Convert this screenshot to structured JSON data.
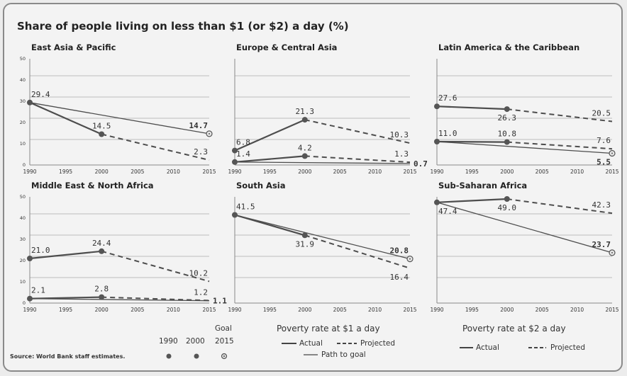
{
  "title": "Share of people living on less than $1 (or $2) a day (%)",
  "chart_data": [
    {
      "type": "line",
      "title": "East Asia & Pacific",
      "x_ticks": [
        "1990",
        "1995",
        "2000",
        "2005",
        "2010",
        "2015"
      ],
      "y_ticks": [
        "0",
        "10",
        "20",
        "30",
        "40",
        "50"
      ],
      "ylim": [
        0,
        50
      ],
      "series": [
        {
          "style": "goal",
          "points": [
            [
              1990,
              29.4
            ],
            [
              2015,
              14.7
            ]
          ]
        },
        {
          "style": "actual",
          "points": [
            [
              1990,
              29.4
            ],
            [
              2000,
              14.5
            ]
          ]
        },
        {
          "style": "projected",
          "points": [
            [
              2000,
              14.5
            ],
            [
              2015,
              2.3
            ]
          ]
        }
      ],
      "labels": [
        {
          "text": "29.4",
          "x": 1990,
          "y": 29.4,
          "pos": "above-right",
          "bold": false
        },
        {
          "text": "14.5",
          "x": 2000,
          "y": 14.5,
          "pos": "above",
          "bold": false
        },
        {
          "text": "14.7",
          "x": 2015,
          "y": 14.7,
          "pos": "above-left",
          "bold": true
        },
        {
          "text": "2.3",
          "x": 2015,
          "y": 2.3,
          "pos": "above-left",
          "bold": false
        }
      ],
      "markers": [
        {
          "year": 1990,
          "value": 29.4,
          "kind": "1990"
        },
        {
          "year": 2000,
          "value": 14.5,
          "kind": "2000"
        },
        {
          "year": 2015,
          "value": 14.7,
          "kind": "goal"
        }
      ]
    },
    {
      "type": "line",
      "title": "Europe & Central Asia",
      "x_ticks": [
        "1990",
        "1995",
        "2000",
        "2005",
        "2010",
        "2015"
      ],
      "y_ticks": [],
      "ylim": [
        0,
        50
      ],
      "series": [
        {
          "style": "actual",
          "points": [
            [
              1990,
              6.8
            ],
            [
              2000,
              21.3
            ]
          ]
        },
        {
          "style": "projected",
          "points": [
            [
              2000,
              21.3
            ],
            [
              2015,
              10.3
            ]
          ]
        },
        {
          "style": "actual",
          "points": [
            [
              1990,
              1.4
            ],
            [
              2000,
              4.2
            ]
          ]
        },
        {
          "style": "projected",
          "points": [
            [
              2000,
              4.2
            ],
            [
              2015,
              1.3
            ]
          ]
        },
        {
          "style": "goal",
          "points": [
            [
              1990,
              1.4
            ],
            [
              2015,
              0.7
            ]
          ]
        }
      ],
      "labels": [
        {
          "text": "6.8",
          "x": 1990,
          "y": 6.8,
          "pos": "above-right",
          "bold": false
        },
        {
          "text": "21.3",
          "x": 2000,
          "y": 21.3,
          "pos": "above",
          "bold": false
        },
        {
          "text": "10.3",
          "x": 2015,
          "y": 10.3,
          "pos": "above-left",
          "bold": false
        },
        {
          "text": "1.4",
          "x": 1990,
          "y": 1.4,
          "pos": "above-right",
          "bold": false
        },
        {
          "text": "4.2",
          "x": 2000,
          "y": 4.2,
          "pos": "above",
          "bold": false
        },
        {
          "text": "1.3",
          "x": 2015,
          "y": 1.3,
          "pos": "above-left",
          "bold": false
        },
        {
          "text": "0.7",
          "x": 2015,
          "y": 0.7,
          "pos": "right",
          "bold": true
        }
      ],
      "markers": [
        {
          "year": 1990,
          "value": 6.8,
          "kind": "1990"
        },
        {
          "year": 2000,
          "value": 21.3,
          "kind": "2000"
        },
        {
          "year": 1990,
          "value": 1.4,
          "kind": "1990"
        },
        {
          "year": 2000,
          "value": 4.2,
          "kind": "2000"
        }
      ]
    },
    {
      "type": "line",
      "title": "Latin America & the Caribbean",
      "x_ticks": [
        "1990",
        "1995",
        "2000",
        "2005",
        "2010",
        "2015"
      ],
      "y_ticks": [],
      "ylim": [
        0,
        50
      ],
      "series": [
        {
          "style": "actual",
          "points": [
            [
              1990,
              27.6
            ],
            [
              2000,
              26.3
            ]
          ]
        },
        {
          "style": "projected",
          "points": [
            [
              2000,
              26.3
            ],
            [
              2015,
              20.5
            ]
          ]
        },
        {
          "style": "actual",
          "points": [
            [
              1990,
              11.0
            ],
            [
              2000,
              10.8
            ]
          ]
        },
        {
          "style": "projected",
          "points": [
            [
              2000,
              10.8
            ],
            [
              2015,
              7.6
            ]
          ]
        },
        {
          "style": "goal",
          "points": [
            [
              1990,
              11.0
            ],
            [
              2015,
              5.5
            ]
          ]
        }
      ],
      "labels": [
        {
          "text": "27.6",
          "x": 1990,
          "y": 27.6,
          "pos": "above-right",
          "bold": false
        },
        {
          "text": "26.3",
          "x": 2000,
          "y": 26.3,
          "pos": "below",
          "bold": false
        },
        {
          "text": "20.5",
          "x": 2015,
          "y": 20.5,
          "pos": "above-left",
          "bold": false
        },
        {
          "text": "11.0",
          "x": 1990,
          "y": 11.0,
          "pos": "above-right",
          "bold": false
        },
        {
          "text": "10.8",
          "x": 2000,
          "y": 10.8,
          "pos": "above",
          "bold": false
        },
        {
          "text": "7.6",
          "x": 2015,
          "y": 7.6,
          "pos": "above-left",
          "bold": false
        },
        {
          "text": "5.5",
          "x": 2015,
          "y": 5.5,
          "pos": "below-left",
          "bold": true
        }
      ],
      "markers": [
        {
          "year": 1990,
          "value": 27.6,
          "kind": "1990"
        },
        {
          "year": 2000,
          "value": 26.3,
          "kind": "2000"
        },
        {
          "year": 1990,
          "value": 11.0,
          "kind": "1990"
        },
        {
          "year": 2000,
          "value": 10.8,
          "kind": "2000"
        },
        {
          "year": 2015,
          "value": 5.5,
          "kind": "goal"
        }
      ]
    },
    {
      "type": "line",
      "title": "Middle East & North Africa",
      "x_ticks": [
        "1990",
        "1995",
        "2000",
        "2005",
        "2010",
        "2015"
      ],
      "y_ticks": [
        "0",
        "10",
        "20",
        "30",
        "40",
        "50"
      ],
      "ylim": [
        0,
        50
      ],
      "series": [
        {
          "style": "actual",
          "points": [
            [
              1990,
              21.0
            ],
            [
              2000,
              24.4
            ]
          ]
        },
        {
          "style": "projected",
          "points": [
            [
              2000,
              24.4
            ],
            [
              2015,
              10.2
            ]
          ]
        },
        {
          "style": "actual",
          "points": [
            [
              1990,
              2.1
            ],
            [
              2000,
              2.8
            ]
          ]
        },
        {
          "style": "projected",
          "points": [
            [
              2000,
              2.8
            ],
            [
              2015,
              1.2
            ]
          ]
        },
        {
          "style": "goal",
          "points": [
            [
              1990,
              2.1
            ],
            [
              2015,
              1.1
            ]
          ]
        }
      ],
      "labels": [
        {
          "text": "21.0",
          "x": 1990,
          "y": 21.0,
          "pos": "above-right",
          "bold": false
        },
        {
          "text": "24.4",
          "x": 2000,
          "y": 24.4,
          "pos": "above",
          "bold": false
        },
        {
          "text": "10.2",
          "x": 2015,
          "y": 10.2,
          "pos": "above-left",
          "bold": false
        },
        {
          "text": "2.1",
          "x": 1990,
          "y": 2.1,
          "pos": "above-right",
          "bold": false
        },
        {
          "text": "2.8",
          "x": 2000,
          "y": 2.8,
          "pos": "above",
          "bold": false
        },
        {
          "text": "1.2",
          "x": 2015,
          "y": 1.2,
          "pos": "above-left",
          "bold": false
        },
        {
          "text": "1.1",
          "x": 2015,
          "y": 1.1,
          "pos": "right",
          "bold": true
        }
      ],
      "markers": [
        {
          "year": 1990,
          "value": 21.0,
          "kind": "1990"
        },
        {
          "year": 2000,
          "value": 24.4,
          "kind": "2000"
        },
        {
          "year": 1990,
          "value": 2.1,
          "kind": "1990"
        },
        {
          "year": 2000,
          "value": 2.8,
          "kind": "2000"
        }
      ]
    },
    {
      "type": "line",
      "title": "South Asia",
      "x_ticks": [
        "1990",
        "1995",
        "2000",
        "2005",
        "2010",
        "2015"
      ],
      "y_ticks": [],
      "ylim": [
        0,
        50
      ],
      "series": [
        {
          "style": "goal",
          "points": [
            [
              1990,
              41.5
            ],
            [
              2015,
              20.8
            ]
          ]
        },
        {
          "style": "actual",
          "points": [
            [
              1990,
              41.5
            ],
            [
              2000,
              31.9
            ]
          ]
        },
        {
          "style": "projected",
          "points": [
            [
              2000,
              31.9
            ],
            [
              2015,
              16.4
            ]
          ]
        }
      ],
      "labels": [
        {
          "text": "41.5",
          "x": 1990,
          "y": 41.5,
          "pos": "above-right",
          "bold": false
        },
        {
          "text": "31.9",
          "x": 2000,
          "y": 31.9,
          "pos": "below",
          "bold": false
        },
        {
          "text": "20.8",
          "x": 2015,
          "y": 20.8,
          "pos": "above-left",
          "bold": true
        },
        {
          "text": "16.4",
          "x": 2015,
          "y": 16.4,
          "pos": "below-left",
          "bold": false
        }
      ],
      "markers": [
        {
          "year": 1990,
          "value": 41.5,
          "kind": "1990"
        },
        {
          "year": 2000,
          "value": 31.9,
          "kind": "2000"
        },
        {
          "year": 2015,
          "value": 20.8,
          "kind": "goal"
        }
      ]
    },
    {
      "type": "line",
      "title": "Sub-Saharan Africa",
      "x_ticks": [
        "1990",
        "1995",
        "2000",
        "2005",
        "2010",
        "2015"
      ],
      "y_ticks": [],
      "ylim": [
        0,
        50
      ],
      "series": [
        {
          "style": "goal",
          "points": [
            [
              1990,
              47.4
            ],
            [
              2015,
              23.7
            ]
          ]
        },
        {
          "style": "actual",
          "points": [
            [
              1990,
              47.4
            ],
            [
              2000,
              49.0
            ]
          ]
        },
        {
          "style": "projected",
          "points": [
            [
              2000,
              49.0
            ],
            [
              2015,
              42.3
            ]
          ]
        }
      ],
      "labels": [
        {
          "text": "47.4",
          "x": 1990,
          "y": 47.4,
          "pos": "below-right",
          "bold": false
        },
        {
          "text": "49.0",
          "x": 2000,
          "y": 49.0,
          "pos": "below",
          "bold": false
        },
        {
          "text": "42.3",
          "x": 2015,
          "y": 42.3,
          "pos": "above-left",
          "bold": false
        },
        {
          "text": "23.7",
          "x": 2015,
          "y": 23.7,
          "pos": "above-left",
          "bold": true
        }
      ],
      "markers": [
        {
          "year": 1990,
          "value": 47.4,
          "kind": "1990"
        },
        {
          "year": 2000,
          "value": 49.0,
          "kind": "2000"
        },
        {
          "year": 2015,
          "value": 23.7,
          "kind": "goal"
        }
      ]
    }
  ],
  "legend": {
    "markers": {
      "y1990": "1990",
      "y2000": "2000",
      "goal_line1": "Goal",
      "goal_line2": "2015"
    },
    "dollar1": {
      "title": "Poverty rate at $1 a day",
      "actual": "Actual",
      "projected": "Projected",
      "path": "Path to goal"
    },
    "dollar2": {
      "title": "Poverty rate at $2 a day",
      "actual": "Actual",
      "projected": "Projected"
    }
  },
  "source": "Source: World Bank staff estimates.",
  "colors": {
    "line": "#4d4d4d",
    "grid": "#bdbdbd",
    "marker_fill": "#555555",
    "background": "#f3f3f3"
  }
}
